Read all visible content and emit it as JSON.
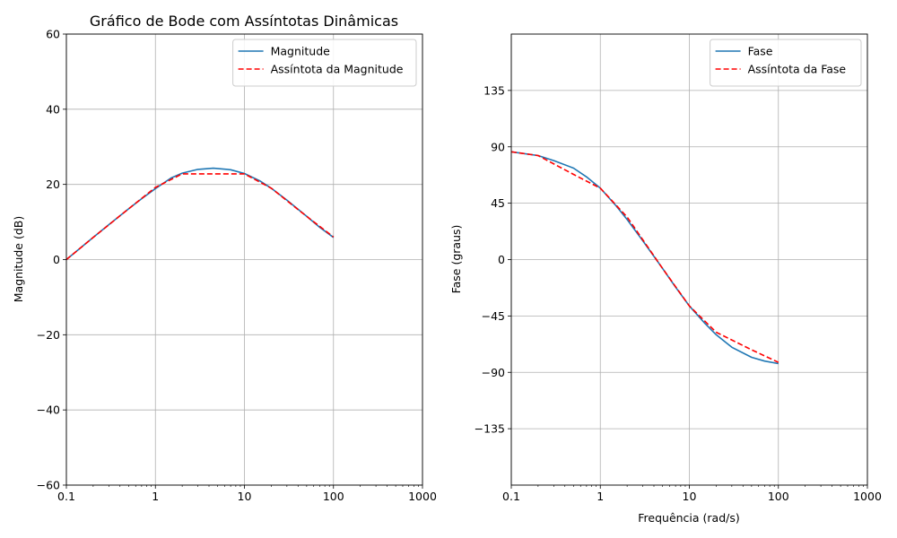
{
  "chart_data": [
    {
      "type": "line",
      "title": "Gráfico de Bode com Assíntotas Dinâmicas",
      "xlabel": "",
      "ylabel": "Magnitude (dB)",
      "xscale": "log",
      "xlim": [
        0.1,
        1000
      ],
      "ylim": [
        -60,
        60
      ],
      "xticks": [
        0.1,
        1,
        10,
        100,
        1000
      ],
      "xtick_labels": [
        "0.1",
        "1",
        "10",
        "100",
        "1000"
      ],
      "yticks": [
        -60,
        -40,
        -20,
        0,
        20,
        40,
        60
      ],
      "ytick_labels": [
        "−60",
        "−40",
        "−20",
        "0",
        "20",
        "40",
        "60"
      ],
      "grid": true,
      "legend_position": "top-right",
      "series": [
        {
          "name": "Magnitude",
          "color": "#1f77b4",
          "style": "solid",
          "x": [
            0.1,
            0.2,
            0.3,
            0.5,
            0.7,
            1,
            1.5,
            2,
            3,
            4.47,
            7,
            10,
            15,
            20,
            30,
            50,
            70,
            100
          ],
          "y": [
            0.0,
            5.9,
            9.3,
            13.5,
            16.2,
            18.9,
            21.7,
            23.0,
            24.0,
            24.3,
            23.9,
            22.9,
            20.9,
            19.0,
            15.8,
            11.5,
            8.6,
            5.9
          ]
        },
        {
          "name": "Assíntota da Magnitude",
          "color": "#ff0000",
          "style": "dashed",
          "x": [
            0.1,
            0.2,
            0.5,
            1,
            2,
            5,
            10,
            20,
            50,
            100
          ],
          "y": [
            0.0,
            5.9,
            13.5,
            19.2,
            22.8,
            22.8,
            22.8,
            19.0,
            11.5,
            6.0
          ]
        }
      ]
    },
    {
      "type": "line",
      "title": "",
      "xlabel": "Frequência (rad/s)",
      "ylabel": "Fase (graus)",
      "xscale": "log",
      "xlim": [
        0.1,
        1000
      ],
      "ylim": [
        -180,
        180
      ],
      "xticks": [
        0.1,
        1,
        10,
        100,
        1000
      ],
      "xtick_labels": [
        "0.1",
        "1",
        "10",
        "100",
        "1000"
      ],
      "yticks": [
        -135,
        -90,
        -45,
        0,
        45,
        90,
        135
      ],
      "ytick_labels": [
        "−135",
        "−90",
        "−45",
        "0",
        "45",
        "90",
        "135"
      ],
      "grid": true,
      "legend_position": "top-right",
      "series": [
        {
          "name": "Fase",
          "color": "#1f77b4",
          "style": "solid",
          "x": [
            0.1,
            0.2,
            0.3,
            0.5,
            0.7,
            1,
            1.5,
            2,
            3,
            5,
            7,
            10,
            15,
            20,
            30,
            50,
            70,
            100
          ],
          "y": [
            86,
            83,
            79,
            73,
            66,
            57,
            43,
            32,
            15,
            -7,
            -22,
            -37,
            -51,
            -60,
            -70,
            -78,
            -81,
            -83
          ]
        },
        {
          "name": "Assíntota da Fase",
          "color": "#ff0000",
          "style": "dashed",
          "x": [
            0.1,
            0.2,
            0.5,
            1,
            2,
            5,
            10,
            20,
            50,
            100
          ],
          "y": [
            86,
            83,
            68,
            57,
            34,
            -7,
            -37,
            -58,
            -72,
            -82
          ]
        }
      ]
    }
  ]
}
